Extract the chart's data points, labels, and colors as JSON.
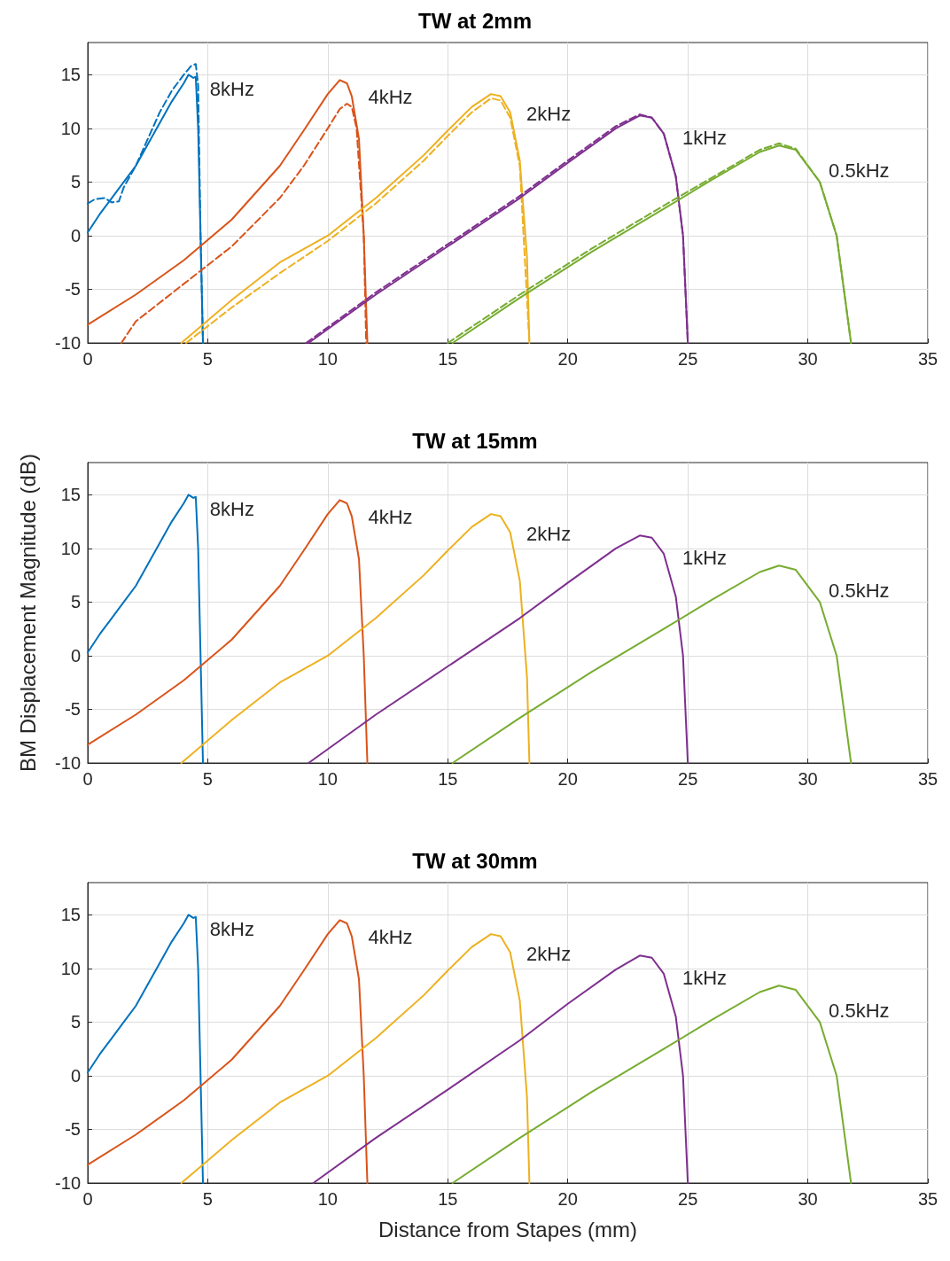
{
  "chart_data": [
    {
      "type": "line",
      "title": "TW at 2mm",
      "xlim": [
        0,
        35
      ],
      "xticks": [
        0,
        5,
        10,
        15,
        20,
        25,
        30,
        35
      ],
      "ylim": [
        -10,
        18
      ],
      "yticks": [
        -10,
        -5,
        0,
        5,
        10,
        15
      ],
      "grid": true,
      "marker": "none",
      "series": [
        {
          "color": "#0072bd",
          "x": [
            0,
            0.5,
            1,
            1.5,
            2,
            2.5,
            3,
            3.5,
            4,
            4.2,
            4.4,
            4.5,
            4.6,
            4.7,
            4.8
          ],
          "values": [
            0.3,
            2,
            3.5,
            5,
            6.5,
            8.5,
            10.5,
            12.5,
            14.2,
            15,
            14.7,
            14.8,
            10,
            0,
            -10
          ]
        },
        {
          "color": "#0072bd",
          "line_style": "dashed",
          "x": [
            0,
            0.3,
            0.7,
            1,
            1.3,
            1.5,
            2,
            2.5,
            3,
            3.5,
            4,
            4.3,
            4.5,
            4.6,
            4.7,
            4.8
          ],
          "values": [
            3,
            3.4,
            3.5,
            3.1,
            3.2,
            4.5,
            6.5,
            9,
            11.5,
            13.5,
            15,
            15.8,
            16,
            14,
            0,
            -10
          ]
        },
        {
          "color": "#d95319",
          "x": [
            0,
            2,
            4,
            6,
            8,
            9,
            10,
            10.5,
            10.8,
            11,
            11.3,
            11.5,
            11.65
          ],
          "values": [
            -8.3,
            -5.5,
            -2.3,
            1.5,
            6.5,
            9.8,
            13.2,
            14.5,
            14.2,
            13,
            9,
            0,
            -10
          ]
        },
        {
          "color": "#d95319",
          "line_style": "dashed",
          "x": [
            1.4,
            2,
            4,
            6,
            8,
            9,
            10,
            10.5,
            10.8,
            11,
            11.2,
            11.5,
            11.6
          ],
          "values": [
            -10,
            -8,
            -4.5,
            -1,
            3.5,
            6.5,
            10,
            11.8,
            12.3,
            12,
            10,
            0,
            -10
          ]
        },
        {
          "color": "#edb120",
          "x": [
            3.9,
            6,
            8,
            10,
            12,
            14,
            15,
            16,
            16.8,
            17.2,
            17.6,
            18,
            18.3,
            18.4
          ],
          "values": [
            -10,
            -6,
            -2.5,
            0,
            3.5,
            7.5,
            9.8,
            12,
            13.2,
            13,
            11.5,
            7,
            -2,
            -10
          ]
        },
        {
          "color": "#edb120",
          "line_style": "dashed",
          "x": [
            4.1,
            6,
            8,
            10,
            12,
            14,
            15,
            16,
            16.8,
            17.2,
            17.6,
            18,
            18.4
          ],
          "values": [
            -10,
            -6.7,
            -3.5,
            -0.5,
            3,
            7,
            9.3,
            11.5,
            12.8,
            12.6,
            11,
            6.5,
            -10
          ]
        },
        {
          "color": "#7e2f8e",
          "x": [
            9.2,
            12,
            15,
            18,
            20,
            22,
            23,
            23.5,
            24,
            24.5,
            24.8,
            25
          ],
          "values": [
            -10,
            -5.5,
            -1,
            3.5,
            6.8,
            10,
            11.2,
            11,
            9.5,
            5.5,
            0,
            -10
          ]
        },
        {
          "color": "#7e2f8e",
          "line_style": "dashed",
          "x": [
            9.1,
            12,
            15,
            18,
            20,
            22,
            23,
            23.5,
            24,
            24.5,
            24.8,
            25
          ],
          "values": [
            -10,
            -5.3,
            -0.8,
            3.7,
            7,
            10.2,
            11.3,
            11,
            9.5,
            5.5,
            0,
            -10
          ]
        },
        {
          "color": "#77ac30",
          "x": [
            15.2,
            18,
            21,
            24,
            26,
            28,
            28.8,
            29.5,
            30.5,
            31.2,
            31.8
          ],
          "values": [
            -10,
            -5.8,
            -1.5,
            2.5,
            5.2,
            7.8,
            8.4,
            8,
            5,
            0,
            -10
          ]
        },
        {
          "color": "#77ac30",
          "line_style": "dashed",
          "x": [
            15,
            18,
            21,
            24,
            26,
            28,
            28.8,
            29.5,
            30.5,
            31.2,
            31.8
          ],
          "values": [
            -10,
            -5.5,
            -1.2,
            2.8,
            5.4,
            8,
            8.6,
            8.1,
            5,
            0,
            -10
          ]
        }
      ],
      "annotations": [
        "8kHz",
        "4kHz",
        "2kHz",
        "1kHz",
        "0.5kHz"
      ]
    },
    {
      "type": "line",
      "title": "TW at 15mm",
      "ylabel": "BM Displacement Magnitude (dB)",
      "xlim": [
        0,
        35
      ],
      "xticks": [
        0,
        5,
        10,
        15,
        20,
        25,
        30,
        35
      ],
      "ylim": [
        -10,
        18
      ],
      "yticks": [
        -10,
        -5,
        0,
        5,
        10,
        15
      ],
      "grid": true,
      "marker": "none",
      "series": [
        {
          "color": "#0072bd",
          "x": [
            0,
            0.5,
            1,
            1.5,
            2,
            2.5,
            3,
            3.5,
            4,
            4.2,
            4.4,
            4.5,
            4.6,
            4.7,
            4.8
          ],
          "values": [
            0.3,
            2,
            3.5,
            5,
            6.5,
            8.5,
            10.5,
            12.5,
            14.2,
            15,
            14.7,
            14.8,
            10,
            0,
            -10
          ]
        },
        {
          "color": "#d95319",
          "x": [
            0,
            2,
            4,
            6,
            8,
            9,
            10,
            10.5,
            10.8,
            11,
            11.3,
            11.5,
            11.65
          ],
          "values": [
            -8.3,
            -5.5,
            -2.3,
            1.5,
            6.5,
            9.8,
            13.2,
            14.5,
            14.2,
            13,
            9,
            0,
            -10
          ]
        },
        {
          "color": "#edb120",
          "x": [
            3.9,
            6,
            8,
            10,
            12,
            14,
            15,
            16,
            16.8,
            17.2,
            17.6,
            18,
            18.3,
            18.4
          ],
          "values": [
            -10,
            -6,
            -2.5,
            0,
            3.5,
            7.5,
            9.8,
            12,
            13.2,
            13,
            11.5,
            7,
            -2,
            -10
          ]
        },
        {
          "color": "#7e2f8e",
          "x": [
            9.2,
            12,
            15,
            18,
            20,
            22,
            23,
            23.5,
            24,
            24.5,
            24.8,
            25
          ],
          "values": [
            -10,
            -5.5,
            -1,
            3.5,
            6.8,
            10,
            11.2,
            11,
            9.5,
            5.5,
            0,
            -10
          ]
        },
        {
          "color": "#77ac30",
          "x": [
            15.2,
            18,
            21,
            24,
            26,
            28,
            28.8,
            29.5,
            30.5,
            31.2,
            31.8
          ],
          "values": [
            -10,
            -5.8,
            -1.5,
            2.5,
            5.2,
            7.8,
            8.4,
            8,
            5,
            0,
            -10
          ]
        }
      ],
      "annotations": [
        "8kHz",
        "4kHz",
        "2kHz",
        "1kHz",
        "0.5kHz"
      ]
    },
    {
      "type": "line",
      "title": "TW at 30mm",
      "xlabel": "Distance from Stapes (mm)",
      "xlim": [
        0,
        35
      ],
      "xticks": [
        0,
        5,
        10,
        15,
        20,
        25,
        30,
        35
      ],
      "ylim": [
        -10,
        18
      ],
      "yticks": [
        -10,
        -5,
        0,
        5,
        10,
        15
      ],
      "grid": true,
      "marker": "none",
      "series": [
        {
          "color": "#0072bd",
          "x": [
            0,
            0.5,
            1,
            1.5,
            2,
            2.5,
            3,
            3.5,
            4,
            4.2,
            4.4,
            4.5,
            4.6,
            4.7,
            4.8
          ],
          "values": [
            0.3,
            2,
            3.5,
            5,
            6.5,
            8.5,
            10.5,
            12.5,
            14.2,
            15,
            14.7,
            14.8,
            10,
            0,
            -10
          ]
        },
        {
          "color": "#d95319",
          "x": [
            0,
            2,
            4,
            6,
            8,
            9,
            10,
            10.5,
            10.8,
            11,
            11.3,
            11.5,
            11.65
          ],
          "values": [
            -8.3,
            -5.5,
            -2.3,
            1.5,
            6.5,
            9.8,
            13.2,
            14.5,
            14.2,
            13,
            9,
            0,
            -10
          ]
        },
        {
          "color": "#edb120",
          "x": [
            3.9,
            6,
            8,
            10,
            12,
            14,
            15,
            16,
            16.8,
            17.2,
            17.6,
            18,
            18.3,
            18.4
          ],
          "values": [
            -10,
            -6,
            -2.5,
            0,
            3.5,
            7.5,
            9.8,
            12,
            13.2,
            13,
            11.5,
            7,
            -2,
            -10
          ]
        },
        {
          "color": "#7e2f8e",
          "x": [
            9.4,
            12,
            15,
            18,
            20,
            22,
            23,
            23.5,
            24,
            24.5,
            24.8,
            25
          ],
          "values": [
            -10,
            -5.8,
            -1.3,
            3.3,
            6.7,
            9.9,
            11.2,
            11,
            9.5,
            5.5,
            0,
            -10
          ]
        },
        {
          "color": "#77ac30",
          "x": [
            15.2,
            18,
            21,
            24,
            26,
            28,
            28.8,
            29.5,
            30.5,
            31.2,
            31.8
          ],
          "values": [
            -10,
            -5.8,
            -1.5,
            2.5,
            5.2,
            7.8,
            8.4,
            8,
            5,
            0,
            -10
          ]
        }
      ],
      "annotations": [
        "8kHz",
        "4kHz",
        "2kHz",
        "1kHz",
        "0.5kHz"
      ]
    }
  ]
}
